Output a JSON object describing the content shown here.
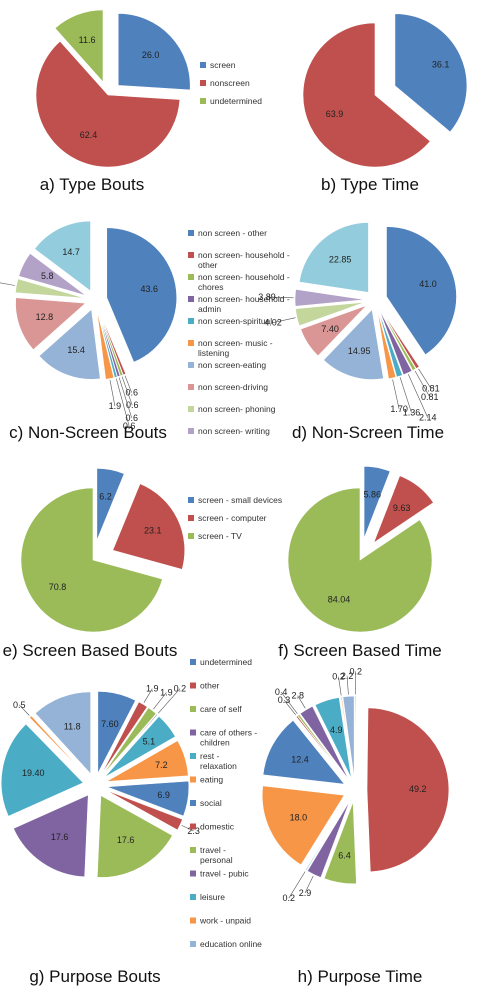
{
  "chart_data": [
    {
      "type": "pie",
      "title": "a) Type Bouts",
      "slices": [
        {
          "name": "screen",
          "value": 26.0,
          "label": "26.0",
          "color": "#4f81bd"
        },
        {
          "name": "nonscreen",
          "value": 62.4,
          "label": "62.4",
          "color": "#c0504d"
        },
        {
          "name": "undetermined",
          "value": 11.6,
          "label": "11.6",
          "color": "#9bbb59"
        }
      ],
      "legend": [
        "screen",
        "nonscreen",
        "undetermined"
      ]
    },
    {
      "type": "pie",
      "title": "b) Type Time",
      "slices": [
        {
          "name": "screen",
          "value": 36.1,
          "label": "36.1",
          "color": "#4f81bd"
        },
        {
          "name": "nonscreen",
          "value": 63.9,
          "label": "63.9",
          "color": "#c0504d"
        }
      ]
    },
    {
      "type": "pie",
      "title": "c) Non-Screen Bouts",
      "slices": [
        {
          "name": "non screen - other",
          "value": 43.6,
          "label": "43.6",
          "color": "#4f81bd"
        },
        {
          "name": "non screen- household - other",
          "value": 0.6,
          "label": "0.6",
          "color": "#c0504d"
        },
        {
          "name": "non screen- household - chores",
          "value": 0.6,
          "label": "0.6",
          "color": "#9bbb59"
        },
        {
          "name": "non screen- household - admin",
          "value": 0.6,
          "label": "0.6",
          "color": "#8064a2"
        },
        {
          "name": "non screen-spiritual",
          "value": 0.6,
          "label": "0.6",
          "color": "#4bacc6"
        },
        {
          "name": "non screen- music - listening",
          "value": 1.9,
          "label": "1.9",
          "color": "#f79646"
        },
        {
          "name": "non screen-eating",
          "value": 15.4,
          "label": "15.4",
          "color": "#95b3d7"
        },
        {
          "name": "non screen-driving",
          "value": 12.8,
          "label": "12.8",
          "color": "#d99694"
        },
        {
          "name": "non screen- phoning",
          "value": 3.2,
          "label": "3.2",
          "color": "#c3d69b"
        },
        {
          "name": "non screen- writing",
          "value": 5.8,
          "label": "5.8",
          "color": "#b3a2c7"
        },
        {
          "name": "",
          "value": 14.7,
          "label": "14.7",
          "color": "#93cddd"
        }
      ],
      "legend": [
        "non screen - other",
        "non screen- household - other",
        "non screen- household - chores",
        "non screen- household - admin",
        "non screen-spiritual",
        "non screen- music - listening",
        "non screen-eating",
        "non screen-driving",
        "non screen- phoning",
        "non screen- writing"
      ]
    },
    {
      "type": "pie",
      "title": "d) Non-Screen Time",
      "slices": [
        {
          "name": "non screen - other",
          "value": 41.0,
          "label": "41.0",
          "color": "#4f81bd"
        },
        {
          "name": "non screen- household - other",
          "value": 0.81,
          "label": "0.81",
          "color": "#c0504d"
        },
        {
          "name": "non screen- household - chores",
          "value": 0.81,
          "label": "0.81",
          "color": "#9bbb59"
        },
        {
          "name": "non screen- household - admin",
          "value": 2.14,
          "label": "2.14",
          "color": "#8064a2"
        },
        {
          "name": "non screen-spiritual",
          "value": 1.36,
          "label": "1.36",
          "color": "#4bacc6"
        },
        {
          "name": "non screen- music - listening",
          "value": 1.7,
          "label": "1.70",
          "color": "#f79646"
        },
        {
          "name": "non screen-eating",
          "value": 14.95,
          "label": "14.95",
          "color": "#95b3d7"
        },
        {
          "name": "non screen-driving",
          "value": 7.4,
          "label": "7.40",
          "color": "#d99694"
        },
        {
          "name": "non screen- phoning",
          "value": 4.02,
          "label": "4.02",
          "color": "#c3d69b"
        },
        {
          "name": "non screen- writing",
          "value": 3.89,
          "label": "3.89",
          "color": "#b3a2c7"
        },
        {
          "name": "",
          "value": 22.85,
          "label": "22.85",
          "color": "#93cddd"
        }
      ]
    },
    {
      "type": "pie",
      "title": "e) Screen Based Bouts",
      "slices": [
        {
          "name": "screen - small devices",
          "value": 6.2,
          "label": "6.2",
          "color": "#4f81bd"
        },
        {
          "name": "screen - computer",
          "value": 23.1,
          "label": "23.1",
          "color": "#c0504d"
        },
        {
          "name": "screen - TV",
          "value": 70.8,
          "label": "70.8",
          "color": "#9bbb59"
        }
      ],
      "legend": [
        "screen - small devices",
        "screen - computer",
        "screen - TV"
      ]
    },
    {
      "type": "pie",
      "title": "f) Screen Based Time",
      "slices": [
        {
          "name": "screen - small devices",
          "value": 5.86,
          "label": "5.86",
          "color": "#4f81bd"
        },
        {
          "name": "screen - computer",
          "value": 9.63,
          "label": "9.63",
          "color": "#c0504d"
        },
        {
          "name": "screen - TV",
          "value": 84.04,
          "label": "84.04",
          "color": "#9bbb59"
        }
      ]
    },
    {
      "type": "pie",
      "title": "g) Purpose Bouts",
      "slices": [
        {
          "name": "undetermined",
          "value": 7.6,
          "label": "7.60",
          "color": "#4f81bd"
        },
        {
          "name": "other",
          "value": 1.9,
          "label": "1.9",
          "color": "#c0504d"
        },
        {
          "name": "care of self",
          "value": 1.9,
          "label": "1.9",
          "color": "#9bbb59"
        },
        {
          "name": "care of others - children",
          "value": 0.2,
          "label": "0.2",
          "color": "#8064a2"
        },
        {
          "name": "rest - relaxation",
          "value": 5.1,
          "label": "5.1",
          "color": "#4bacc6"
        },
        {
          "name": "eating",
          "value": 7.2,
          "label": "7.2",
          "color": "#f79646"
        },
        {
          "name": "social",
          "value": 6.9,
          "label": "6.9",
          "color": "#4f81bd"
        },
        {
          "name": "domestic",
          "value": 2.3,
          "label": "2.3",
          "color": "#c0504d"
        },
        {
          "name": "travel - personal",
          "value": 17.6,
          "label": "17.6",
          "color": "#9bbb59"
        },
        {
          "name": "travel - pubic",
          "value": 17.6,
          "label": "17.6",
          "color": "#8064a2"
        },
        {
          "name": "leisure",
          "value": 19.4,
          "label": "19.40",
          "color": "#4bacc6"
        },
        {
          "name": "work - unpaid",
          "value": 0.5,
          "label": "0.5",
          "color": "#f79646"
        },
        {
          "name": "education online",
          "value": 11.8,
          "label": "11.8",
          "color": "#95b3d7"
        }
      ],
      "legend": [
        "undetermined",
        "other",
        "care of self",
        "care of others - children",
        "rest - relaxation",
        "eating",
        "social",
        "domestic",
        "travel - personal",
        "travel - pubic",
        "leisure",
        "work - unpaid",
        "education online"
      ]
    },
    {
      "type": "pie",
      "title": "h) Purpose Time",
      "slices": [
        {
          "name": "undetermined",
          "value": 0.2,
          "label": "0.2",
          "color": "#95b3d7"
        },
        {
          "name": "other",
          "value": 49.2,
          "label": "49.2",
          "color": "#c0504d"
        },
        {
          "name": "care of self",
          "value": 6.4,
          "label": "6.4",
          "color": "#9bbb59"
        },
        {
          "name": "care of others - children",
          "value": 2.9,
          "label": "2.9",
          "color": "#8064a2"
        },
        {
          "name": "rest - relaxation",
          "value": 0.2,
          "label": "0.2",
          "color": "#4bacc6"
        },
        {
          "name": "eating",
          "value": 18.0,
          "label": "18.0",
          "color": "#f79646"
        },
        {
          "name": "social",
          "value": 12.4,
          "label": "12.4",
          "color": "#4f81bd"
        },
        {
          "name": "domestic",
          "value": 0.3,
          "label": "0.3",
          "color": "#c0504d"
        },
        {
          "name": "travel - personal",
          "value": 0.4,
          "label": "0.4",
          "color": "#9bbb59"
        },
        {
          "name": "travel - pubic",
          "value": 2.8,
          "label": "2.8",
          "color": "#8064a2"
        },
        {
          "name": "leisure",
          "value": 4.9,
          "label": "4.9",
          "color": "#4bacc6"
        },
        {
          "name": "work - unpaid",
          "value": 0.2,
          "label": "0.2",
          "color": "#f79646"
        },
        {
          "name": "education online",
          "value": 2.2,
          "label": "2.2",
          "color": "#95b3d7"
        }
      ]
    }
  ]
}
